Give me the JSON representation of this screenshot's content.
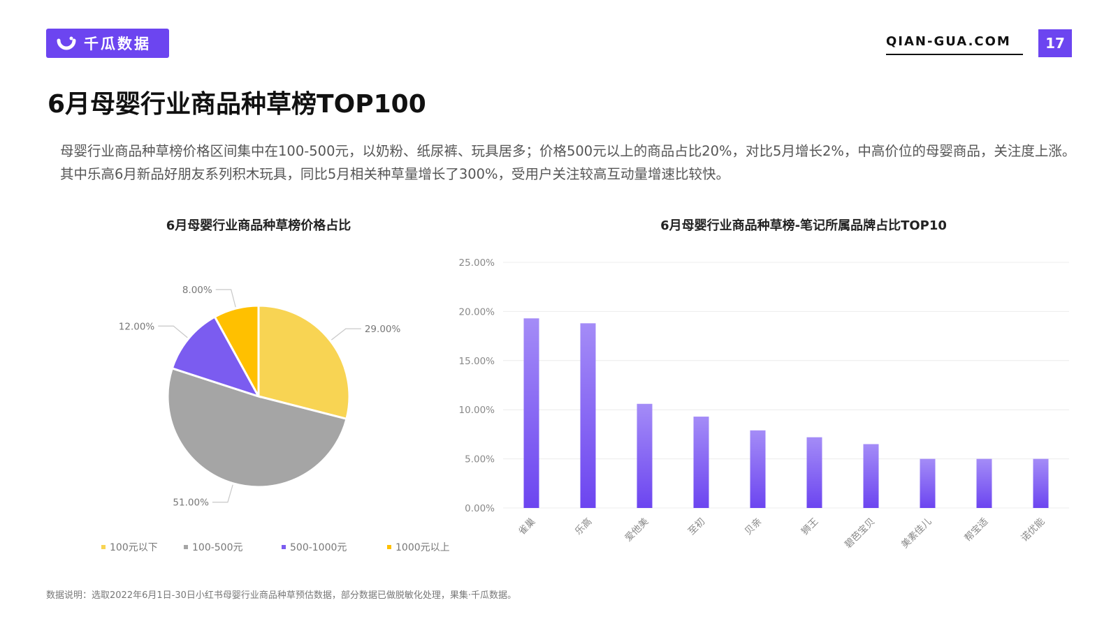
{
  "header": {
    "logo_text": "千瓜数据",
    "site_url": "QIAN-GUA.COM",
    "page_number": "17",
    "brand_color": "#6c45f0"
  },
  "page_title": "6月母婴行业商品种草榜TOP100",
  "summary": "母婴行业商品种草榜价格区间集中在100-500元，以奶粉、纸尿裤、玩具居多；价格500元以上的商品占比20%，对比5月增长2%，中高价位的母婴商品，关注度上涨。其中乐高6月新品好朋友系列积木玩具，同比5月相关种草量增长了300%，受用户关注较高互动量增速比较快。",
  "chart_data": [
    {
      "type": "pie",
      "title": "6月母婴行业商品种草榜价格占比",
      "categories": [
        "100元以下",
        "100-500元",
        "500-1000元",
        "1000元以上"
      ],
      "values": [
        29.0,
        51.0,
        12.0,
        8.0
      ],
      "value_labels": [
        "29.00%",
        "51.00%",
        "12.00%",
        "8.00%"
      ],
      "colors": [
        "#f8d453",
        "#a5a5a5",
        "#7b5cf0",
        "#ffc000"
      ],
      "legend_position": "bottom"
    },
    {
      "type": "bar",
      "title": "6月母婴行业商品种草榜-笔记所属品牌占比TOP10",
      "categories": [
        "雀巢",
        "乐高",
        "爱他美",
        "至初",
        "贝亲",
        "狮王",
        "碧芭宝贝",
        "美素佳儿",
        "帮宝适",
        "诺优能"
      ],
      "values": [
        19.3,
        18.8,
        10.6,
        9.3,
        7.9,
        7.2,
        6.5,
        5.0,
        5.0,
        5.0
      ],
      "ylim": [
        0,
        25
      ],
      "yticks": [
        "0.00%",
        "5.00%",
        "10.00%",
        "15.00%",
        "20.00%",
        "25.00%"
      ],
      "grid": true,
      "bar_color_top": "#a48cf7",
      "bar_color_bottom": "#6c45f0"
    }
  ],
  "footnote": "数据说明：选取2022年6月1日-30日小红书母婴行业商品种草预估数据，部分数据已做脱敏化处理，果集·千瓜数据。"
}
